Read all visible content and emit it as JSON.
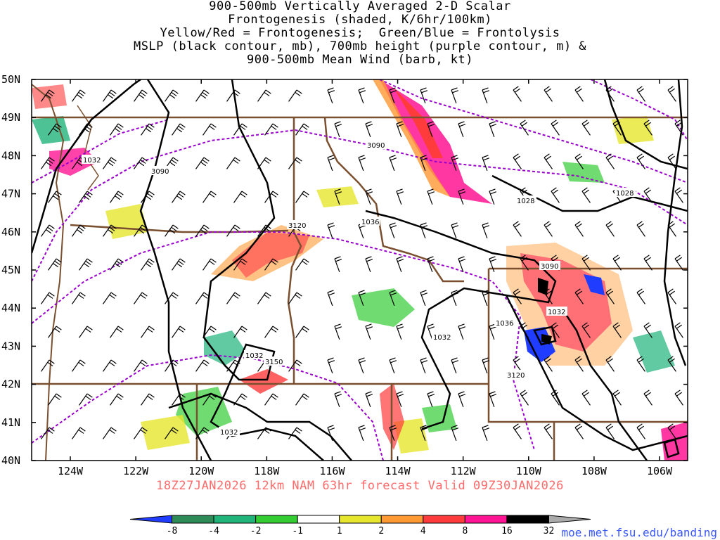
{
  "title": {
    "lines": [
      "900-500mb Vertically Averaged 2-D Scalar",
      "Frontogenesis (shaded, K/6hr/100km)",
      "Yellow/Red = Frontogenesis;  Green/Blue = Frontolysis",
      "MSLP (black contour, mb), 700mb height (purple contour, m) &",
      "900-500mb Mean Wind (barb, kt)"
    ]
  },
  "axes": {
    "lat_labels": [
      "50N",
      "49N",
      "48N",
      "47N",
      "46N",
      "45N",
      "44N",
      "43N",
      "42N",
      "41N",
      "40N"
    ],
    "lon_labels": [
      "124W",
      "122W",
      "120W",
      "118W",
      "116W",
      "114W",
      "112W",
      "110W",
      "108W",
      "106W"
    ]
  },
  "contour_labels": {
    "mslp": [
      "1032",
      "1028",
      "1028",
      "1032",
      "1036",
      "1036",
      "1032",
      "1032",
      "1032"
    ],
    "height_700mb": [
      "3090",
      "3090",
      "3120",
      "3090",
      "3150",
      "3120"
    ]
  },
  "forecast_info": "18Z27JAN2026 12km NAM 63hr forecast Valid 09Z30JAN2026",
  "colorbar": {
    "labels": [
      "-8",
      "-4",
      "-2",
      "-1",
      "1",
      "2",
      "4",
      "8",
      "16",
      "32"
    ],
    "colors": [
      "#1f3cff",
      "#2e8b57",
      "#20b37a",
      "#33cc33",
      "#ffffff",
      "#e6e62e",
      "#ff9933",
      "#ff3b3b",
      "#ff1493",
      "#000000",
      "#aaaaaa"
    ]
  },
  "credit": "moe.met.fsu.edu/banding",
  "colors": {
    "mslp": "#000000",
    "height": "#9900cc",
    "borders": "#7a5030",
    "forecast_text": "#ff6a6a",
    "credit_text": "#3a58ff"
  }
}
